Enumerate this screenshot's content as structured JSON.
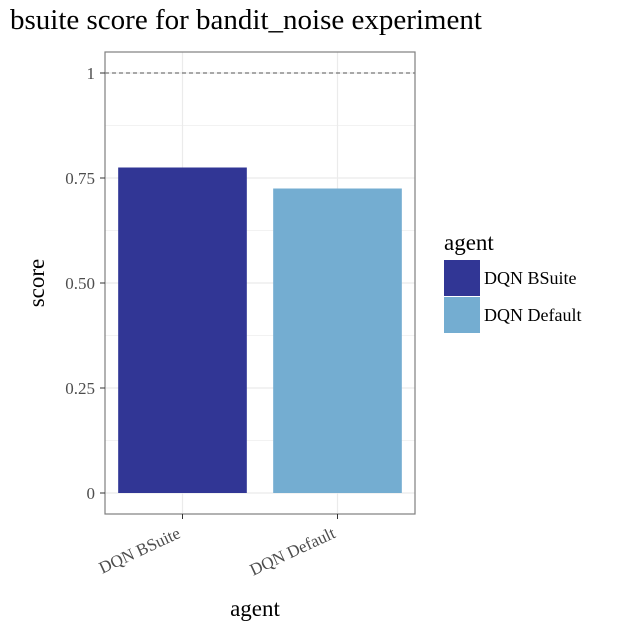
{
  "chart_data": {
    "type": "bar",
    "title": "bsuite score for bandit_noise experiment",
    "xlabel": "agent",
    "ylabel": "score",
    "categories": [
      "DQN BSuite",
      "DQN Default"
    ],
    "values": [
      0.775,
      0.725
    ],
    "colors": [
      "#313695",
      "#74add1"
    ],
    "ylim": [
      0,
      1
    ],
    "yticks": [
      0,
      0.25,
      0.5,
      0.75,
      1
    ],
    "ytick_labels": [
      "0",
      "0.25",
      "0.50",
      "0.75",
      "1"
    ],
    "reference_line": 1,
    "legend": {
      "title": "agent",
      "position": "right",
      "entries": [
        "DQN BSuite",
        "DQN Default"
      ]
    },
    "grid": true
  }
}
